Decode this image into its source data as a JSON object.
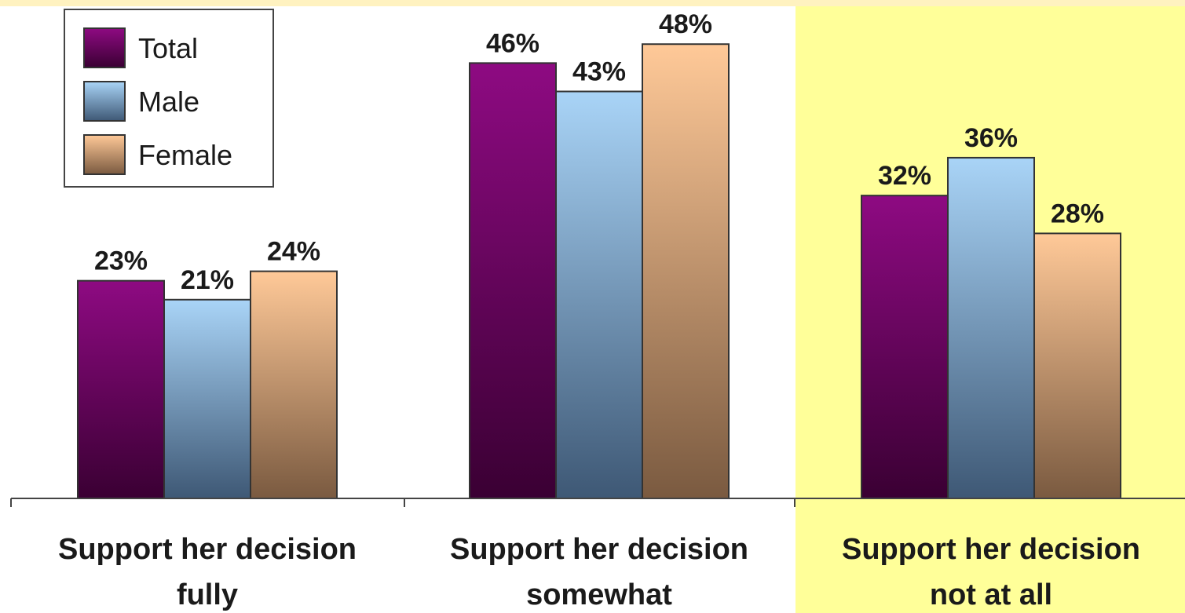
{
  "chart_data": {
    "type": "bar",
    "categories": [
      "Support her decision fully",
      "Support her decision somewhat",
      "Support her decision not at all"
    ],
    "category_lines": [
      [
        "Support her decision",
        "fully"
      ],
      [
        "Support her decision",
        "somewhat"
      ],
      [
        "Support her decision",
        "not at all"
      ]
    ],
    "series": [
      {
        "name": "Total",
        "values": [
          23,
          46,
          32
        ],
        "labels": [
          "23%",
          "46%",
          "32%"
        ],
        "color_top": "#8e0a82",
        "color_bottom": "#3a0033"
      },
      {
        "name": "Male",
        "values": [
          21,
          43,
          36
        ],
        "labels": [
          "21%",
          "43%",
          "36%"
        ],
        "color_top": "#a9d4f7",
        "color_bottom": "#3e5875"
      },
      {
        "name": "Female",
        "values": [
          24,
          48,
          28
        ],
        "labels": [
          "24%",
          "48%",
          "28%"
        ],
        "color_top": "#ffc998",
        "color_bottom": "#7a5a40"
      }
    ],
    "ylim": [
      0,
      52
    ],
    "grid": false,
    "legend": "top-left",
    "highlight_category": 2,
    "highlight_color": "#ffff99",
    "top_strip_color": "#fff2c0",
    "bar_outline_color": "#333333"
  }
}
